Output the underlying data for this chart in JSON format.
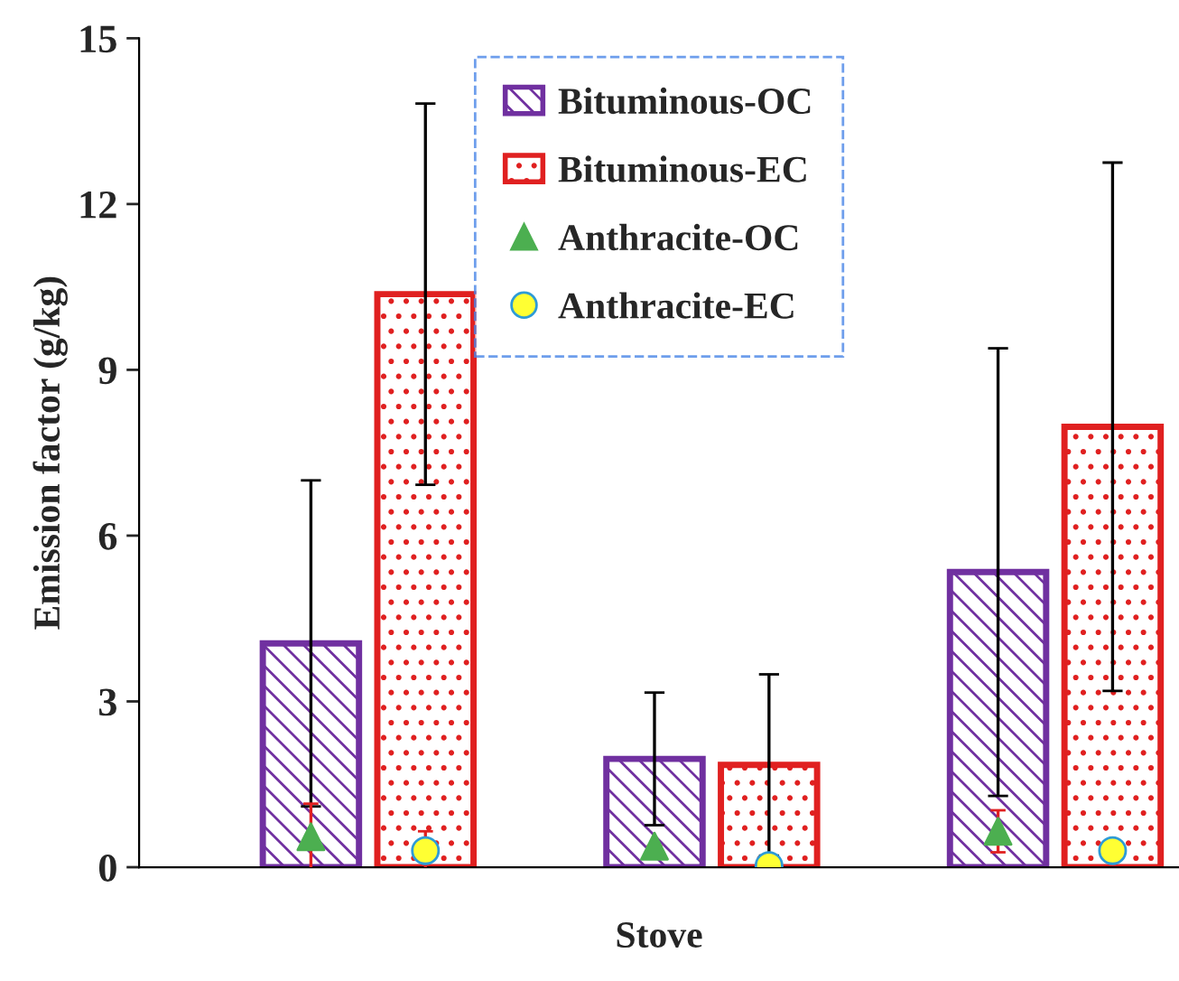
{
  "chart_data": {
    "type": "bar",
    "xlabel": "Stove",
    "ylabel": "Emission factor (g/kg)",
    "categories": [
      null,
      null,
      null
    ],
    "series": [
      {
        "name": "Bituminous-OC",
        "color": "#7030a0",
        "values": [
          4.05,
          1.96,
          5.34
        ],
        "errors": [
          2.95,
          1.2,
          4.05
        ]
      },
      {
        "name": "Bituminous-EC",
        "color": "#e02020",
        "values": [
          10.37,
          1.85,
          7.97
        ],
        "errors": [
          3.45,
          1.64,
          4.78
        ]
      },
      {
        "name": "Anthracite-OC",
        "type": "scatter",
        "marker": "triangle",
        "color": "#4caf50",
        "values": [
          0.55,
          0.38,
          0.65
        ],
        "errors": [
          0.6,
          null,
          0.38
        ]
      },
      {
        "name": "Anthracite-EC",
        "type": "scatter",
        "marker": "circle",
        "color": "#ffff33",
        "values": [
          0.3,
          0.03,
          0.3
        ],
        "errors": [
          0.35,
          null,
          null
        ]
      }
    ],
    "ylim": [
      0,
      15
    ],
    "yticks": [
      0,
      3,
      6,
      9,
      12,
      15
    ],
    "grid": false,
    "legend": "top"
  }
}
